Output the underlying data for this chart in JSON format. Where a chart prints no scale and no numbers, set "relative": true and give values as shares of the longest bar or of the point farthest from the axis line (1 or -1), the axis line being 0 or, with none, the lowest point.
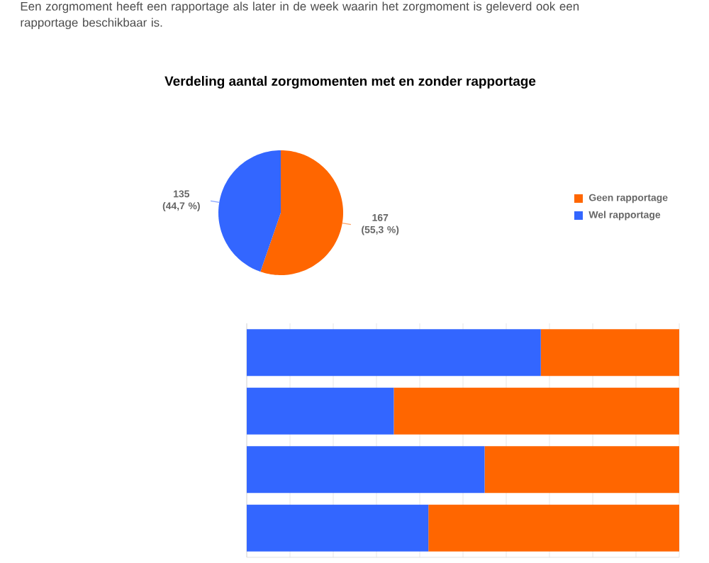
{
  "chart_data": [
    {
      "type": "pie",
      "title": "Verdeling aantal zorgmomenten met en zonder rapportage",
      "annotations": [
        "Een zorgmoment heeft een rapportage als later in de week waarin het zorgmoment is geleverd ook een rapportage beschikbaar is."
      ],
      "categories": [
        "Geen rapportage",
        "Wel rapportage"
      ],
      "values": [
        167,
        135
      ],
      "colors": [
        "#ff6600",
        "#3366ff"
      ],
      "value_labels": [
        "167 (55,3 %)",
        "135 (44,7 %)"
      ],
      "legend": "right"
    },
    {
      "type": "bar",
      "orientation": "horizontal",
      "stacked": true,
      "relative": true,
      "grid": "x",
      "categories": [
        null,
        null,
        null,
        null
      ],
      "series": [
        {
          "color": "#3366ff",
          "values": [
            0.68,
            0.34,
            0.55,
            0.42
          ]
        },
        {
          "color": "#ff6600",
          "values": [
            0.32,
            0.66,
            0.45,
            0.58
          ]
        }
      ]
    }
  ]
}
